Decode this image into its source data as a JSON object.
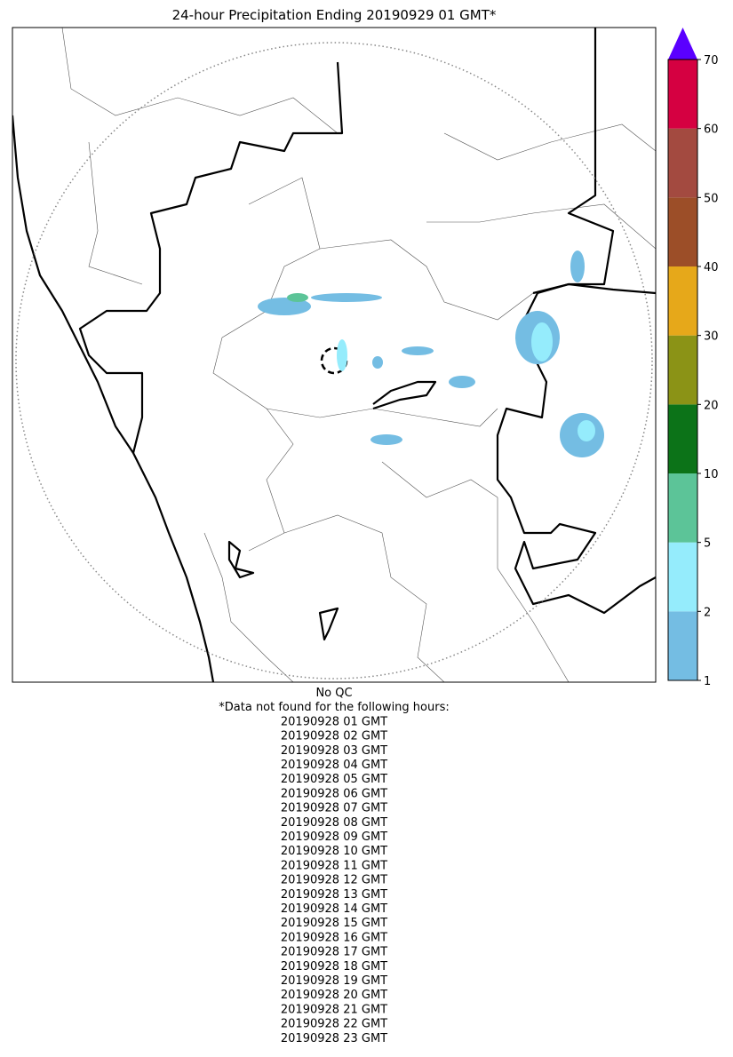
{
  "map": {
    "title": "24-hour Precipitation Ending 20190929 01 GMT*",
    "colorbar": {
      "ticks": [
        1,
        2,
        5,
        10,
        20,
        30,
        40,
        50,
        60,
        70
      ],
      "colors": [
        "#74bde3",
        "#95ecfc",
        "#5cc498",
        "#0c7318",
        "#8b9316",
        "#e6a81a",
        "#9c4e28",
        "#a34a40",
        "#d50041"
      ],
      "extend_color": "#5a00ff"
    }
  },
  "notes": {
    "qc": "No QC",
    "missing_header": "*Data not found for the following hours:",
    "missing_hours": [
      "20190928 01 GMT",
      "20190928 02 GMT",
      "20190928 03 GMT",
      "20190928 04 GMT",
      "20190928 05 GMT",
      "20190928 06 GMT",
      "20190928 07 GMT",
      "20190928 08 GMT",
      "20190928 09 GMT",
      "20190928 10 GMT",
      "20190928 11 GMT",
      "20190928 12 GMT",
      "20190928 13 GMT",
      "20190928 14 GMT",
      "20190928 15 GMT",
      "20190928 16 GMT",
      "20190928 17 GMT",
      "20190928 18 GMT",
      "20190928 19 GMT",
      "20190928 20 GMT",
      "20190928 21 GMT",
      "20190928 22 GMT",
      "20190928 23 GMT"
    ]
  }
}
